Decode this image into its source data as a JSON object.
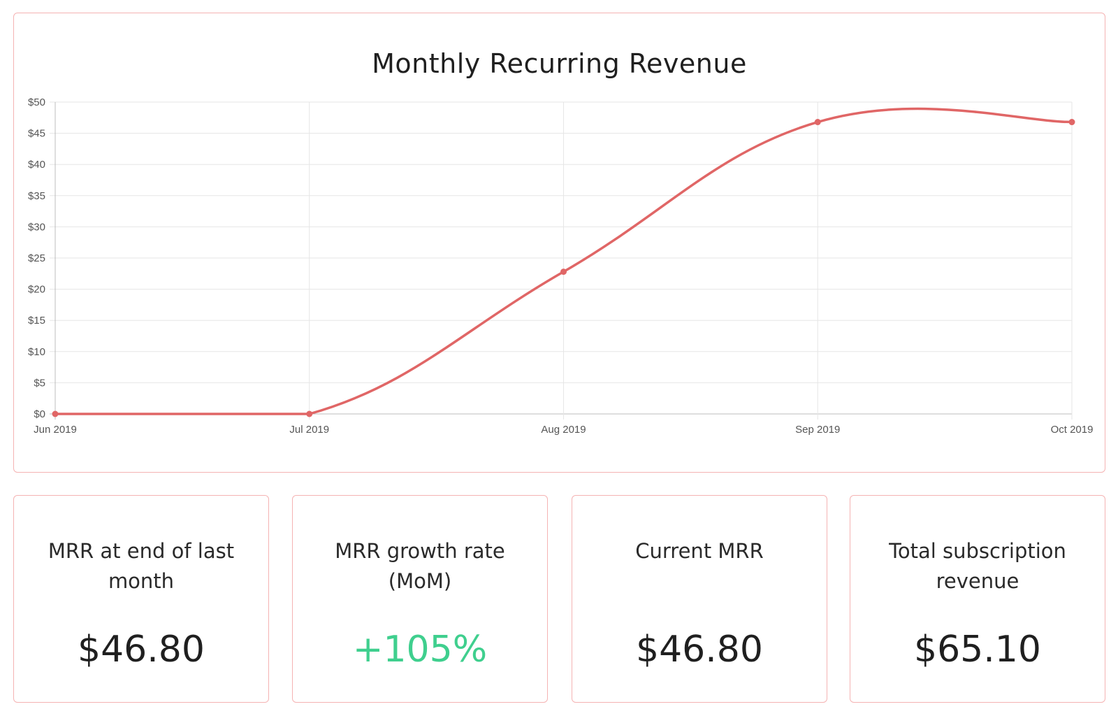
{
  "chart_data": {
    "type": "line",
    "title": "Monthly Recurring Revenue",
    "categories": [
      "Jun 2019",
      "Jul 2019",
      "Aug 2019",
      "Sep 2019",
      "Oct 2019"
    ],
    "series": [
      {
        "values": [
          0,
          0,
          22.8,
          46.8,
          46.8
        ]
      }
    ],
    "y_ticks": [
      "$0",
      "$5",
      "$10",
      "$15",
      "$20",
      "$25",
      "$30",
      "$35",
      "$40",
      "$45",
      "$50"
    ],
    "ylim": [
      0,
      50
    ],
    "grid": true,
    "line_color": "#e06666"
  },
  "stats": [
    {
      "label": "MRR at end of last month",
      "value": "$46.80"
    },
    {
      "label": "MRR growth rate (MoM)",
      "value": "+105%"
    },
    {
      "label": "Current MRR",
      "value": "$46.80"
    },
    {
      "label": "Total subscription revenue",
      "value": "$65.10"
    }
  ],
  "colors": {
    "card_border": "#f5b3b3",
    "positive": "#3fcf8e"
  }
}
